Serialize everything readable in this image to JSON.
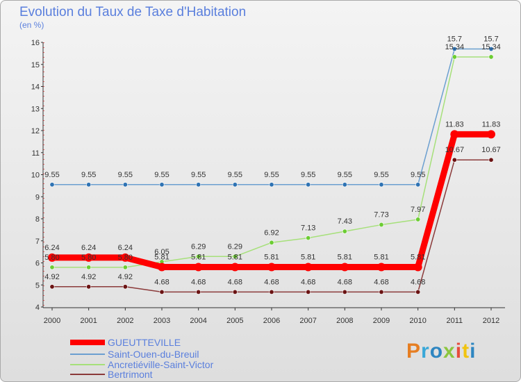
{
  "title": "Evolution du Taux de Taxe d'Habitation",
  "unit": "(en %)",
  "chart_data": {
    "type": "line",
    "title": "Evolution du Taux de Taxe d'Habitation",
    "ylabel": "(en %)",
    "xlabel": "",
    "ylim": [
      4,
      16
    ],
    "yticks": [
      4,
      5,
      6,
      7,
      8,
      9,
      10,
      11,
      12,
      13,
      14,
      15,
      16
    ],
    "grid": false,
    "categories": [
      "2000",
      "2001",
      "2002",
      "2003",
      "2004",
      "2005",
      "2006",
      "2007",
      "2008",
      "2009",
      "2010",
      "2011",
      "2012"
    ],
    "series": [
      {
        "name": "Saint-Ouen-du-Breuil",
        "color": "#6b9fd0",
        "marker": "#2f73b3",
        "values": [
          9.55,
          9.55,
          9.55,
          9.55,
          9.55,
          9.55,
          9.55,
          9.55,
          9.55,
          9.55,
          9.55,
          15.7,
          15.7
        ],
        "labels": [
          "9.55",
          "9.55",
          "9.55",
          "9.55",
          "9.55",
          "9.55",
          "9.55",
          "9.55",
          "9.55",
          "9.55",
          "9.55",
          "15.7",
          "15.7"
        ]
      },
      {
        "name": "Ancretiéville-Saint-Victor",
        "color": "#a6e07a",
        "marker": "#6ccc33",
        "values": [
          5.8,
          5.8,
          5.8,
          6.05,
          6.29,
          6.29,
          6.92,
          7.13,
          7.43,
          7.73,
          7.97,
          15.34,
          15.34
        ],
        "labels": [
          "5.80",
          "5.80",
          "5.80",
          "6.05",
          "6.29",
          "6.29",
          "6.92",
          "7.13",
          "7.43",
          "7.73",
          "7.97",
          "15.34",
          "15.34"
        ]
      },
      {
        "name": "Bertrimont",
        "color": "#8b3a3a",
        "marker": "#6b1414",
        "values": [
          4.92,
          4.92,
          4.92,
          4.68,
          4.68,
          4.68,
          4.68,
          4.68,
          4.68,
          4.68,
          4.68,
          10.67,
          10.67
        ],
        "labels": [
          "4.92",
          "4.92",
          "4.92",
          "4.68",
          "4.68",
          "4.68",
          "4.68",
          "4.68",
          "4.68",
          "4.68",
          "4.68",
          "10.67",
          "10.67"
        ]
      },
      {
        "name": "GUEUTTEVILLE",
        "color": "#ff0000",
        "marker": "#ff0000",
        "values": [
          6.24,
          6.24,
          6.24,
          5.81,
          5.81,
          5.81,
          5.81,
          5.81,
          5.81,
          5.81,
          5.81,
          11.83,
          11.83
        ],
        "labels": [
          "6.24",
          "6.24",
          "6.24",
          "5.81",
          "5.81",
          "5.81",
          "5.81",
          "5.81",
          "5.81",
          "5.81",
          "5.81",
          "11.83",
          "11.83"
        ]
      }
    ]
  },
  "legend": [
    {
      "label": "GUEUTTEVILLE",
      "color": "#ff0000"
    },
    {
      "label": "Saint-Ouen-du-Breuil",
      "color": "#6b9fd0"
    },
    {
      "label": "Ancretiéville-Saint-Victor",
      "color": "#a6e07a"
    },
    {
      "label": "Bertrimont",
      "color": "#8b3a3a"
    }
  ],
  "logo": {
    "name": "Proxiti",
    "letters": [
      {
        "ch": "P",
        "color": "#e67e22"
      },
      {
        "ch": "r",
        "color": "#3aa8d8"
      },
      {
        "ch": "o",
        "color": "#2e86c1"
      },
      {
        "ch": "x",
        "color": "#8cc63f"
      },
      {
        "ch": "i",
        "color": "#e74c3c"
      },
      {
        "ch": "t",
        "color": "#f1c40f"
      },
      {
        "ch": "i",
        "color": "#2e86c1"
      }
    ]
  }
}
